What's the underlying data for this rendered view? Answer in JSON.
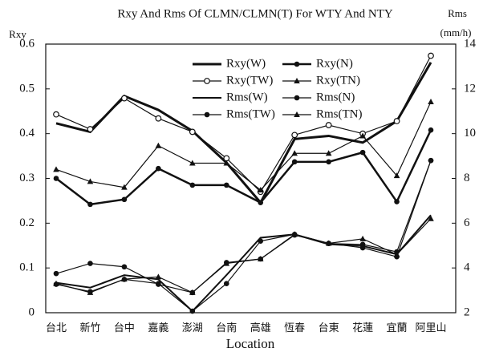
{
  "chart_data": {
    "type": "line",
    "title": "Rxy And Rms Of CLMN/CLMN(T) For WTY And NTY",
    "x_label": "Location",
    "y_label": "Rxy",
    "y2_label": [
      "Rms",
      "(mm/h)"
    ],
    "categories": [
      "台北",
      "新竹",
      "台中",
      "嘉義",
      "澎湖",
      "台南",
      "高雄",
      "恆春",
      "台東",
      "花蓮",
      "宜蘭",
      "阿里山"
    ],
    "ylim": [
      0,
      0.6
    ],
    "yticks": [
      0,
      0.1,
      0.2,
      0.3,
      0.4,
      0.5,
      0.6
    ],
    "y2lim": [
      2,
      14
    ],
    "y2ticks": [
      2,
      4,
      6,
      8,
      10,
      12,
      14
    ],
    "legend": "upper center",
    "series": [
      {
        "name": "Rxy(W)",
        "color": "#111111",
        "marker": "none",
        "width": 3,
        "values": [
          0.423,
          0.404,
          0.484,
          0.453,
          0.406,
          0.335,
          0.246,
          0.388,
          0.395,
          0.38,
          0.428,
          0.559
        ]
      },
      {
        "name": "Rxy(N)",
        "color": "#111111",
        "marker": "filled-circle",
        "width": 2.5,
        "values": [
          0.3,
          0.242,
          0.253,
          0.322,
          0.285,
          0.285,
          0.246,
          0.337,
          0.337,
          0.358,
          0.248,
          0.408
        ]
      },
      {
        "name": "Rxy(TW)",
        "color": "#111111",
        "marker": "open-circle",
        "width": 1.2,
        "values": [
          0.443,
          0.41,
          0.479,
          0.434,
          0.404,
          0.345,
          0.27,
          0.397,
          0.419,
          0.4,
          0.428,
          0.574
        ]
      },
      {
        "name": "Rxy(TN)",
        "color": "#111111",
        "marker": "triangle",
        "width": 1.2,
        "values": [
          0.32,
          0.293,
          0.28,
          0.373,
          0.334,
          0.334,
          0.274,
          0.356,
          0.356,
          0.395,
          0.306,
          0.471
        ]
      },
      {
        "name": "Rms(W)",
        "color": "#111111",
        "marker": "none",
        "width": 2,
        "axis": "y2",
        "values": [
          3.34,
          3.12,
          3.68,
          3.49,
          2.07,
          3.68,
          5.35,
          5.5,
          5.06,
          4.98,
          4.61,
          6.36
        ]
      },
      {
        "name": "Rms(N)",
        "color": "#111111",
        "marker": "filled-circle",
        "width": 1.2,
        "axis": "y2",
        "values": [
          3.75,
          4.2,
          4.05,
          3.27,
          2.9,
          4.24,
          4.4,
          5.47,
          5.09,
          5.05,
          4.72,
          8.8
        ]
      },
      {
        "name": "Rms(TW)",
        "color": "#111111",
        "marker": "filled-circle",
        "width": 1.2,
        "axis": "y2",
        "values": [
          3.27,
          2.94,
          3.49,
          3.3,
          2.07,
          3.3,
          5.2,
          5.5,
          5.1,
          4.9,
          4.5,
          8.8
        ]
      },
      {
        "name": "Rms(TN)",
        "color": "#111111",
        "marker": "triangle",
        "width": 1.2,
        "axis": "y2",
        "values": [
          3.3,
          2.9,
          3.5,
          3.6,
          2.9,
          4.2,
          4.4,
          5.5,
          5.1,
          5.3,
          4.6,
          6.2
        ]
      }
    ]
  }
}
